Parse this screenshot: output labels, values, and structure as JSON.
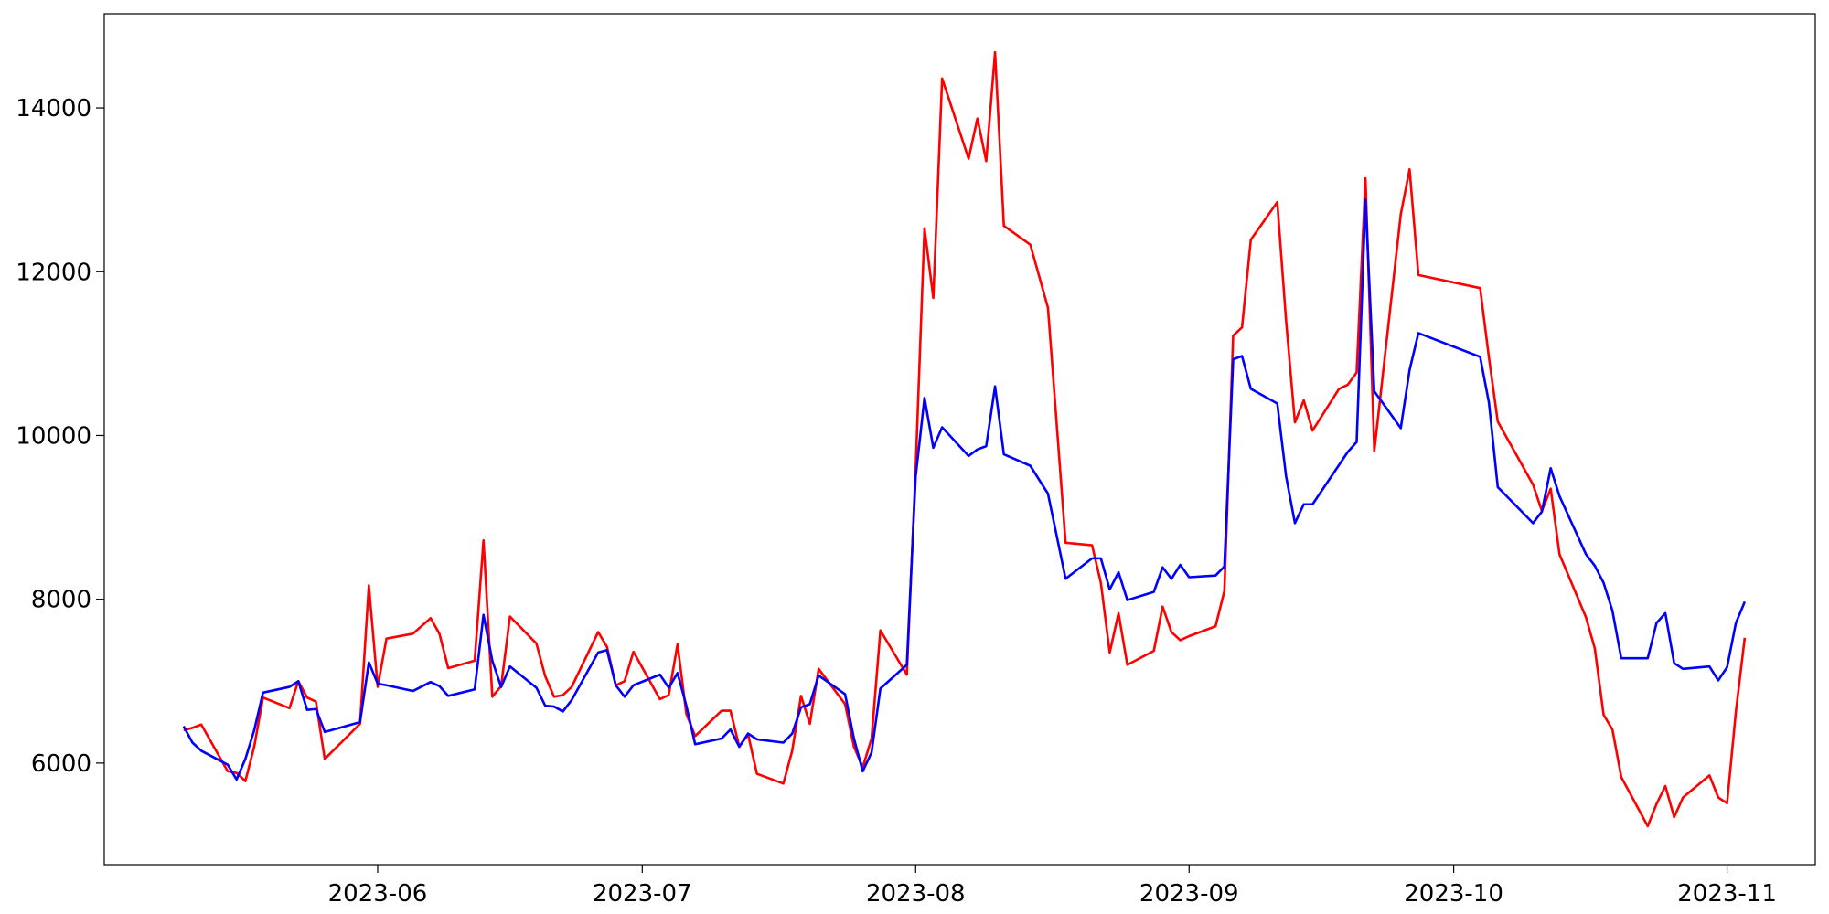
{
  "chart_data": {
    "type": "line",
    "x": [
      "2023-05-10",
      "2023-05-11",
      "2023-05-12",
      "2023-05-15",
      "2023-05-16",
      "2023-05-17",
      "2023-05-18",
      "2023-05-19",
      "2023-05-22",
      "2023-05-23",
      "2023-05-24",
      "2023-05-25",
      "2023-05-26",
      "2023-05-30",
      "2023-05-31",
      "2023-06-01",
      "2023-06-02",
      "2023-06-05",
      "2023-06-07",
      "2023-06-08",
      "2023-06-09",
      "2023-06-12",
      "2023-06-13",
      "2023-06-14",
      "2023-06-15",
      "2023-06-16",
      "2023-06-19",
      "2023-06-20",
      "2023-06-21",
      "2023-06-22",
      "2023-06-23",
      "2023-06-26",
      "2023-06-27",
      "2023-06-28",
      "2023-06-29",
      "2023-06-30",
      "2023-07-03",
      "2023-07-04",
      "2023-07-05",
      "2023-07-06",
      "2023-07-07",
      "2023-07-10",
      "2023-07-11",
      "2023-07-12",
      "2023-07-13",
      "2023-07-14",
      "2023-07-17",
      "2023-07-18",
      "2023-07-19",
      "2023-07-20",
      "2023-07-21",
      "2023-07-24",
      "2023-07-25",
      "2023-07-26",
      "2023-07-27",
      "2023-07-28",
      "2023-07-31",
      "2023-08-01",
      "2023-08-02",
      "2023-08-03",
      "2023-08-04",
      "2023-08-07",
      "2023-08-08",
      "2023-08-09",
      "2023-08-10",
      "2023-08-11",
      "2023-08-14",
      "2023-08-16",
      "2023-08-18",
      "2023-08-21",
      "2023-08-22",
      "2023-08-23",
      "2023-08-24",
      "2023-08-25",
      "2023-08-28",
      "2023-08-29",
      "2023-08-30",
      "2023-08-31",
      "2023-09-01",
      "2023-09-04",
      "2023-09-05",
      "2023-09-06",
      "2023-09-07",
      "2023-09-08",
      "2023-09-11",
      "2023-09-12",
      "2023-09-13",
      "2023-09-14",
      "2023-09-15",
      "2023-09-18",
      "2023-09-19",
      "2023-09-20",
      "2023-09-21",
      "2023-09-22",
      "2023-09-25",
      "2023-09-26",
      "2023-09-27",
      "2023-10-04",
      "2023-10-05",
      "2023-10-06",
      "2023-10-10",
      "2023-10-11",
      "2023-10-12",
      "2023-10-13",
      "2023-10-16",
      "2023-10-17",
      "2023-10-18",
      "2023-10-19",
      "2023-10-20",
      "2023-10-23",
      "2023-10-24",
      "2023-10-25",
      "2023-10-26",
      "2023-10-27",
      "2023-10-30",
      "2023-10-31",
      "2023-11-01",
      "2023-11-02",
      "2023-11-03"
    ],
    "series": [
      {
        "color": "#ff0000",
        "values": [
          6400,
          6430,
          6470,
          5900,
          5880,
          5780,
          6200,
          6800,
          6670,
          7000,
          6800,
          6750,
          6050,
          6480,
          8170,
          6930,
          7520,
          7580,
          7770,
          7580,
          7160,
          7250,
          8720,
          6810,
          6940,
          7790,
          7460,
          7060,
          6810,
          6830,
          6930,
          7600,
          7420,
          6950,
          7000,
          7360,
          6780,
          6830,
          7450,
          6600,
          6330,
          6640,
          6640,
          6200,
          6350,
          5870,
          5750,
          6150,
          6820,
          6480,
          7150,
          6720,
          6200,
          5950,
          6300,
          7620,
          7080,
          9600,
          12530,
          11680,
          14360,
          13380,
          13870,
          13350,
          14680,
          12560,
          12330,
          11560,
          8690,
          8660,
          8200,
          7350,
          7830,
          7200,
          7370,
          7910,
          7600,
          7500,
          7550,
          7670,
          8100,
          11220,
          11320,
          12390,
          12850,
          11400,
          10160,
          10430,
          10060,
          10570,
          10620,
          10770,
          13140,
          9810,
          12700,
          13250,
          11960,
          11800,
          10950,
          10170,
          9400,
          9080,
          9350,
          8550,
          7780,
          7400,
          6590,
          6410,
          5830,
          5230,
          5500,
          5720,
          5340,
          5580,
          5850,
          5580,
          5510,
          6630,
          7530
        ]
      },
      {
        "color": "#0000ff",
        "values": [
          6450,
          6250,
          6150,
          5980,
          5800,
          6050,
          6400,
          6860,
          6930,
          7000,
          6650,
          6660,
          6380,
          6500,
          7230,
          6970,
          6950,
          6880,
          6990,
          6940,
          6820,
          6900,
          7810,
          7250,
          6930,
          7180,
          6920,
          6700,
          6690,
          6630,
          6770,
          7350,
          7380,
          6950,
          6810,
          6950,
          7080,
          6920,
          7100,
          6700,
          6230,
          6300,
          6410,
          6200,
          6360,
          6290,
          6250,
          6360,
          6680,
          6720,
          7070,
          6840,
          6300,
          5900,
          6130,
          6910,
          7200,
          9500,
          10460,
          9850,
          10100,
          9750,
          9830,
          9870,
          10600,
          9770,
          9630,
          9290,
          8250,
          8500,
          8500,
          8120,
          8330,
          7990,
          8090,
          8390,
          8250,
          8420,
          8270,
          8290,
          8400,
          10930,
          10970,
          10570,
          10390,
          9500,
          8930,
          9160,
          9160,
          9640,
          9800,
          9920,
          12880,
          10540,
          10090,
          10800,
          11250,
          10960,
          10400,
          9370,
          8930,
          9070,
          9600,
          9260,
          8550,
          8410,
          8200,
          7860,
          7280,
          7280,
          7710,
          7830,
          7220,
          7150,
          7180,
          7010,
          7170,
          7710,
          7970
        ]
      }
    ],
    "xlim": [
      "2023-05-01",
      "2023-11-11"
    ],
    "xticks": [
      {
        "value": "2023-06-01",
        "label": "2023-06"
      },
      {
        "value": "2023-07-01",
        "label": "2023-07"
      },
      {
        "value": "2023-08-01",
        "label": "2023-08"
      },
      {
        "value": "2023-09-01",
        "label": "2023-09"
      },
      {
        "value": "2023-10-01",
        "label": "2023-10"
      },
      {
        "value": "2023-11-01",
        "label": "2023-11"
      }
    ],
    "ylim": [
      4760,
      15150
    ],
    "yticks": [
      6000,
      8000,
      10000,
      12000,
      14000
    ],
    "grid": false
  }
}
